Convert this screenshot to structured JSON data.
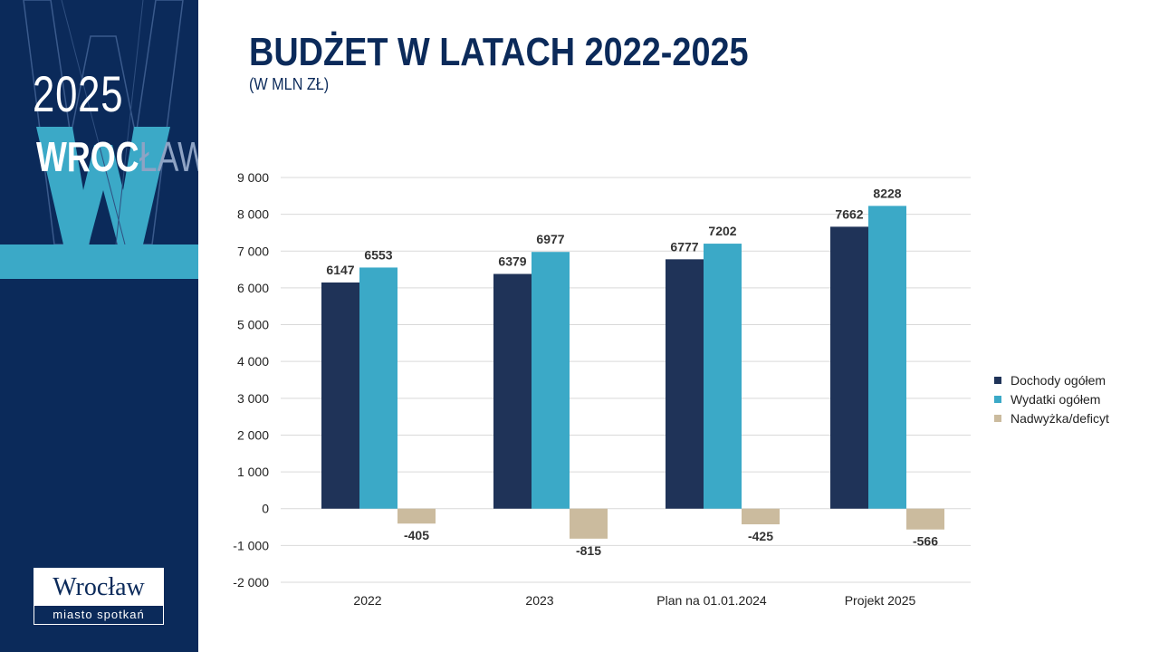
{
  "sidebar": {
    "year": "2025",
    "city_main": "WROC",
    "city_fade": "ŁAW",
    "logo_top": "Wrocław",
    "logo_bottom": "miasto spotkań",
    "colors": {
      "navy": "#0b2a5a",
      "accent": "#3ba9c7"
    }
  },
  "header": {
    "title": "BUDŻET W LATACH 2022-2025",
    "subtitle": "(W MLN ZŁ)"
  },
  "chart_data": {
    "type": "bar",
    "categories": [
      "2022",
      "2023",
      "Plan na 01.01.2024",
      "Projekt 2025"
    ],
    "series": [
      {
        "name": "Dochody ogółem",
        "color": "#1f3358",
        "values": [
          6147,
          6379,
          6777,
          7662
        ],
        "labels": [
          "6147",
          "6379",
          "6777",
          "7662"
        ]
      },
      {
        "name": "Wydatki ogółem",
        "color": "#3ba9c7",
        "values": [
          6553,
          6977,
          7202,
          8228
        ],
        "labels": [
          "6553",
          "6977",
          "7202",
          "8228"
        ]
      },
      {
        "name": "Nadwyżka/deficyt",
        "color": "#cbbb9e",
        "values": [
          -405,
          -815,
          -425,
          -566
        ],
        "labels": [
          "-405",
          "-815",
          "-425",
          "-566"
        ]
      }
    ],
    "ylim": [
      -2000,
      9000
    ],
    "yticks": [
      9000,
      8000,
      7000,
      6000,
      5000,
      4000,
      3000,
      2000,
      1000,
      0,
      -1000,
      -2000
    ],
    "ytick_labels": [
      "9 000",
      "8 000",
      "7 000",
      "6 000",
      "5 000",
      "4 000",
      "3 000",
      "2 000",
      "1 000",
      "0",
      "-1 000",
      "-2 000"
    ],
    "grid": true,
    "legend_position": "right"
  }
}
